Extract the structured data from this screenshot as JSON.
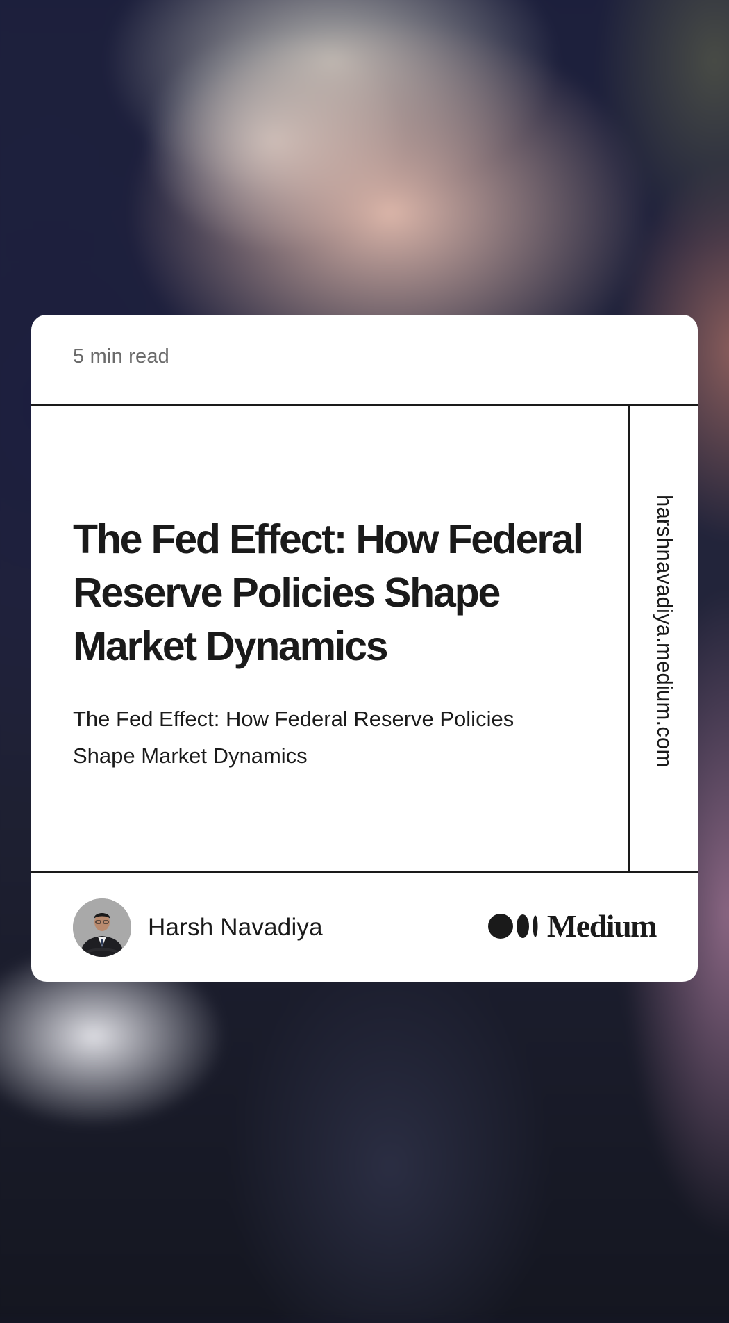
{
  "card": {
    "read_time": "5 min read",
    "title": "The Fed Effect: How Federal Reserve Policies Shape Market Dynamics",
    "subtitle": "The Fed Effect: How Federal Reserve Policies Shape Market Dynamics",
    "side_domain": "harshnavadiya.medium.com",
    "author": {
      "name": "Harsh Navadiya",
      "avatar_icon": "author-avatar"
    },
    "brand": {
      "logo_icon": "medium-logo-icon",
      "wordmark": "Medium"
    }
  },
  "colors": {
    "text": "#1a1a1a",
    "muted_text": "#6b6b6b",
    "card_bg": "#ffffff"
  }
}
